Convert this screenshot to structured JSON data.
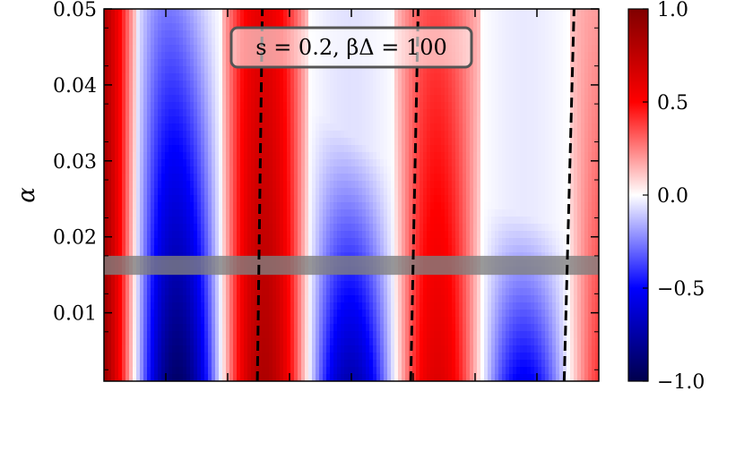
{
  "chart_data": {
    "type": "heatmap",
    "ylabel": "α",
    "xlabel": "",
    "ylim": [
      0.001,
      0.05
    ],
    "yticks": [
      0.01,
      0.02,
      0.03,
      0.04,
      0.05
    ],
    "ytick_labels": [
      "0.01",
      "0.02",
      "0.03",
      "0.04",
      "0.05"
    ],
    "x_minor_ticks_fraction": [
      0.125,
      0.25,
      0.375,
      0.5,
      0.625,
      0.75,
      0.875
    ],
    "annotation": "s = 0.2,  βΔ = 100",
    "colorbar": {
      "range": [
        -1.0,
        1.0
      ],
      "ticks": [
        -1.0,
        -0.5,
        0.0,
        0.5,
        1.0
      ],
      "tick_labels": [
        "−1.0",
        "−0.5",
        "0.0",
        "0.5",
        "1.0"
      ],
      "colormap": "seismic"
    },
    "highlight_band": {
      "y_range": [
        0.015,
        0.0175
      ],
      "color": "#808080"
    },
    "dashed_contours": [
      {
        "x_fraction_bottom": 0.31,
        "x_fraction_top": 0.32
      },
      {
        "x_fraction_bottom": 0.62,
        "x_fraction_top": 0.635
      },
      {
        "x_fraction_bottom": 0.93,
        "x_fraction_top": 0.95
      }
    ],
    "field_description": "Oscillating values between -1 and 1 along the x axis; oscillation amplitude decays with increasing x and with increasing alpha",
    "colors": {
      "neg": "#00004c",
      "zero": "#ffffff",
      "pos": "#800000"
    }
  }
}
